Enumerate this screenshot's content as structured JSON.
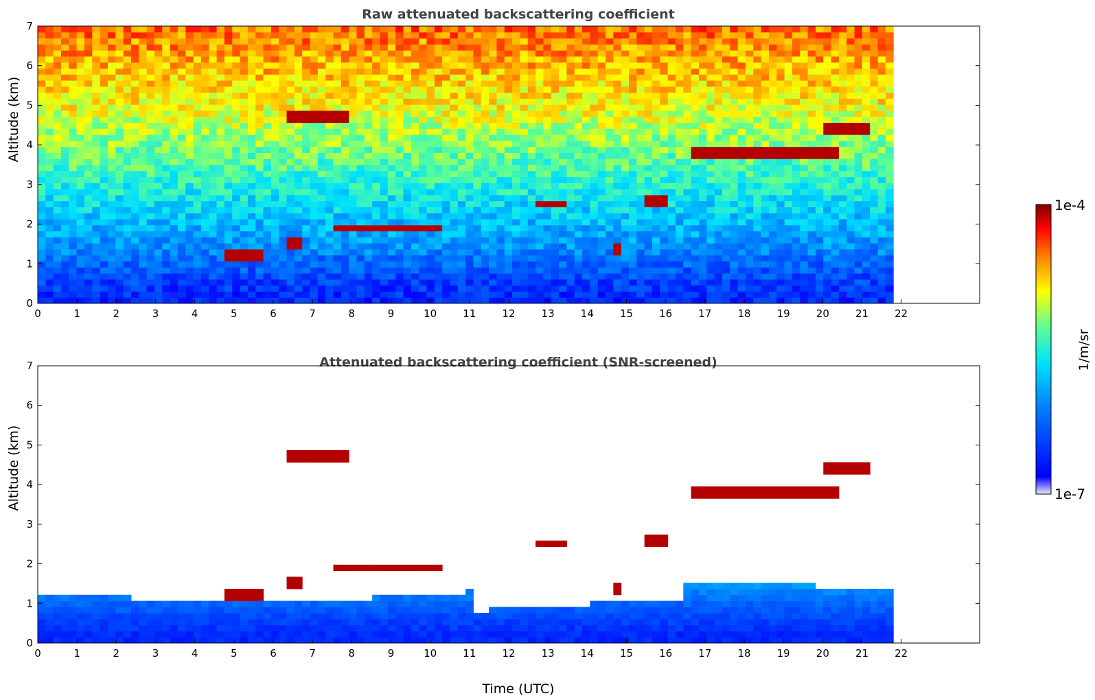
{
  "chart_data": [
    {
      "type": "heatmap",
      "title": "Raw attenuated backscattering coefficient",
      "xlabel": "",
      "ylabel": "Altitude (km)",
      "x_ticks": [
        "0",
        "1",
        "2",
        "3",
        "4",
        "5",
        "6",
        "7",
        "8",
        "9",
        "10",
        "11",
        "12",
        "13",
        "14",
        "15",
        "16",
        "17",
        "18",
        "19",
        "20",
        "21",
        "22"
      ],
      "y_ticks": [
        "0",
        "1",
        "2",
        "3",
        "4",
        "5",
        "6",
        "7"
      ],
      "xlim": [
        0,
        24
      ],
      "ylim": [
        0,
        7
      ],
      "data_extent_hours": [
        0,
        21.8
      ],
      "background_profile": [
        {
          "altitude_km": 0.2,
          "log10_value": -6.6
        },
        {
          "altitude_km": 0.7,
          "log10_value": -6.4
        },
        {
          "altitude_km": 1.5,
          "log10_value": -6.0
        },
        {
          "altitude_km": 3.0,
          "log10_value": -5.5
        },
        {
          "altitude_km": 5.0,
          "log10_value": -4.9
        },
        {
          "altitude_km": 7.0,
          "log10_value": -4.5
        }
      ],
      "cloud_layers": [
        {
          "start": 6.3,
          "end": 7.9,
          "altitude_km": 4.7
        },
        {
          "start": 4.8,
          "end": 5.8,
          "altitude_km": 1.2
        },
        {
          "start": 6.4,
          "end": 6.8,
          "altitude_km": 1.5
        },
        {
          "start": 7.5,
          "end": 10.4,
          "altitude_km": 1.9
        },
        {
          "start": 12.6,
          "end": 13.5,
          "altitude_km": 2.5
        },
        {
          "start": 14.6,
          "end": 14.9,
          "altitude_km": 1.4
        },
        {
          "start": 15.4,
          "end": 16.0,
          "altitude_km": 2.6
        },
        {
          "start": 16.6,
          "end": 20.4,
          "altitude_km": 3.8
        },
        {
          "start": 20.0,
          "end": 21.3,
          "altitude_km": 4.4
        }
      ]
    },
    {
      "type": "heatmap",
      "title": "Attenuated backscattering coefficient (SNR-screened)",
      "xlabel": "Time (UTC)",
      "ylabel": "Altitude (km)",
      "x_ticks": [
        "0",
        "1",
        "2",
        "3",
        "4",
        "5",
        "6",
        "7",
        "8",
        "9",
        "10",
        "11",
        "12",
        "13",
        "14",
        "15",
        "16",
        "17",
        "18",
        "19",
        "20",
        "21",
        "22"
      ],
      "y_ticks": [
        "0",
        "1",
        "2",
        "3",
        "4",
        "5",
        "6",
        "7"
      ],
      "xlim": [
        0,
        24
      ],
      "ylim": [
        0,
        7
      ],
      "data_extent_hours": [
        0,
        21.8
      ],
      "cloud_layers": [
        {
          "start": 6.3,
          "end": 7.9,
          "altitude_km": 4.7
        },
        {
          "start": 4.8,
          "end": 5.8,
          "altitude_km": 1.2
        },
        {
          "start": 6.4,
          "end": 6.8,
          "altitude_km": 1.5
        },
        {
          "start": 7.5,
          "end": 10.4,
          "altitude_km": 1.9
        },
        {
          "start": 12.6,
          "end": 13.5,
          "altitude_km": 2.5
        },
        {
          "start": 14.6,
          "end": 14.9,
          "altitude_km": 1.4
        },
        {
          "start": 15.4,
          "end": 16.0,
          "altitude_km": 2.6
        },
        {
          "start": 16.6,
          "end": 20.4,
          "altitude_km": 3.8
        },
        {
          "start": 20.0,
          "end": 21.3,
          "altitude_km": 4.4
        }
      ]
    }
  ],
  "colorbar": {
    "label": "1/m/sr",
    "max_label": "1e-4",
    "min_label": "1e-7",
    "range_log10": [
      -7,
      -4
    ],
    "colormap": [
      "#e8e8f8",
      "#0000ff",
      "#0080ff",
      "#00e0ff",
      "#60ff90",
      "#ffff00",
      "#ff8000",
      "#ff0000",
      "#800000"
    ]
  }
}
